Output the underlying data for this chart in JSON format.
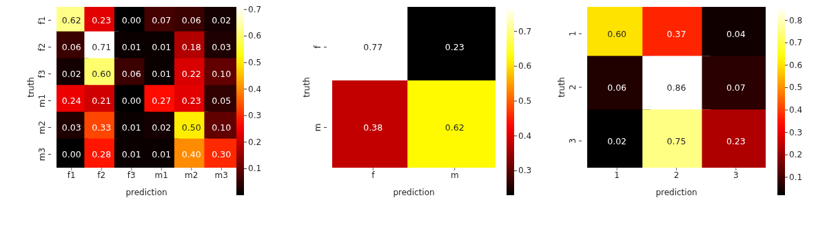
{
  "chart_data": [
    {
      "type": "heatmap",
      "categories": [
        "f1",
        "f2",
        "f3",
        "m1",
        "m2",
        "m3"
      ],
      "y_categories": [
        "f1",
        "f2",
        "f3",
        "m1",
        "m2",
        "m3"
      ],
      "xlabel": "prediction",
      "ylabel": "truth",
      "data_labels": true,
      "cells": [
        [
          0.62,
          0.23,
          0.0,
          0.07,
          0.06,
          0.02
        ],
        [
          0.06,
          0.71,
          0.01,
          0.01,
          0.18,
          0.03
        ],
        [
          0.02,
          0.6,
          0.06,
          0.01,
          0.22,
          0.1
        ],
        [
          0.24,
          0.21,
          0.0,
          0.27,
          0.23,
          0.05
        ],
        [
          0.03,
          0.33,
          0.01,
          0.02,
          0.5,
          0.1
        ],
        [
          0.0,
          0.28,
          0.01,
          0.01,
          0.4,
          0.3
        ]
      ],
      "cell_labels": [
        [
          "0.62",
          "0.23",
          "0.00",
          "0.07",
          "0.06",
          "0.02"
        ],
        [
          "0.06",
          "0.71",
          "0.01",
          "0.01",
          "0.18",
          "0.03"
        ],
        [
          "0.02",
          "0.60",
          "0.06",
          "0.01",
          "0.22",
          "0.10"
        ],
        [
          "0.24",
          "0.21",
          "0.00",
          "0.27",
          "0.23",
          "0.05"
        ],
        [
          "0.03",
          "0.33",
          "0.01",
          "0.02",
          "0.50",
          "0.10"
        ],
        [
          "0.00",
          "0.28",
          "0.01",
          "0.01",
          "0.40",
          "0.30"
        ]
      ],
      "clim": [
        0.0,
        0.71
      ],
      "cticks": [
        0.1,
        0.2,
        0.3,
        0.4,
        0.5,
        0.6,
        0.7
      ]
    },
    {
      "type": "heatmap",
      "categories": [
        "f",
        "m"
      ],
      "y_categories": [
        "f",
        "m"
      ],
      "xlabel": "prediction",
      "ylabel": "truth",
      "data_labels": true,
      "cells": [
        [
          0.77,
          0.23
        ],
        [
          0.38,
          0.62
        ]
      ],
      "clim": [
        0.23,
        0.77
      ],
      "cticks": [
        0.3,
        0.4,
        0.5,
        0.6,
        0.7
      ]
    },
    {
      "type": "heatmap",
      "categories": [
        "1",
        "2",
        "3"
      ],
      "y_categories": [
        "1",
        "2",
        "3"
      ],
      "xlabel": "prediction",
      "ylabel": "truth",
      "data_labels": true,
      "cells": [
        [
          0.6,
          0.37,
          0.04
        ],
        [
          0.06,
          0.86,
          0.07
        ],
        [
          0.02,
          0.75,
          0.23
        ]
      ],
      "cell_labels": [
        [
          "0.60",
          "0.37",
          "0.04"
        ],
        [
          "0.06",
          "0.86",
          "0.07"
        ],
        [
          "0.02",
          "0.75",
          "0.23"
        ]
      ],
      "clim": [
        0.02,
        0.86
      ],
      "cticks": [
        0.1,
        0.2,
        0.3,
        0.4,
        0.5,
        0.6,
        0.7,
        0.8
      ]
    }
  ]
}
